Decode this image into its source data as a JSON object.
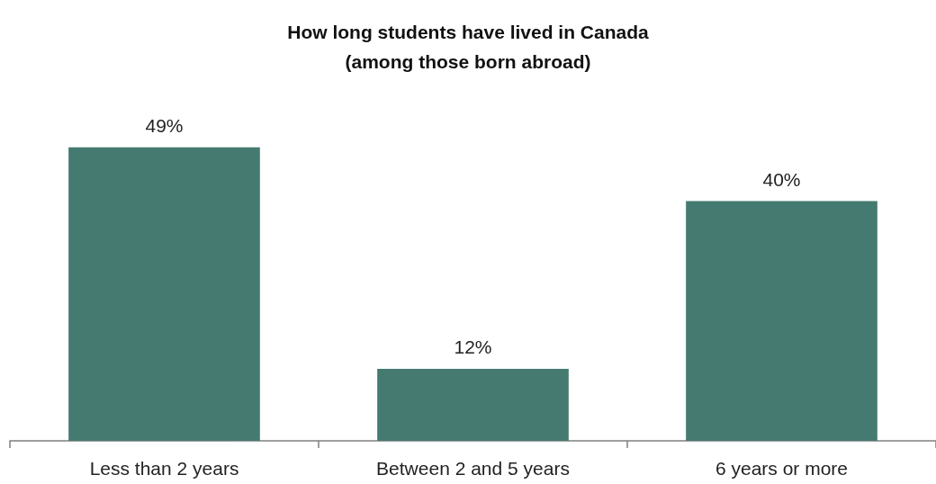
{
  "chart_data": {
    "type": "bar",
    "title": "How long students have lived in Canada\n(among those born abroad)",
    "categories": [
      "Less than 2 years",
      "Between 2 and 5 years",
      "6 years or more"
    ],
    "values": [
      49,
      12,
      40
    ],
    "value_labels": [
      "49%",
      "12%",
      "40%"
    ],
    "color": "#457a70",
    "grid": false
  }
}
